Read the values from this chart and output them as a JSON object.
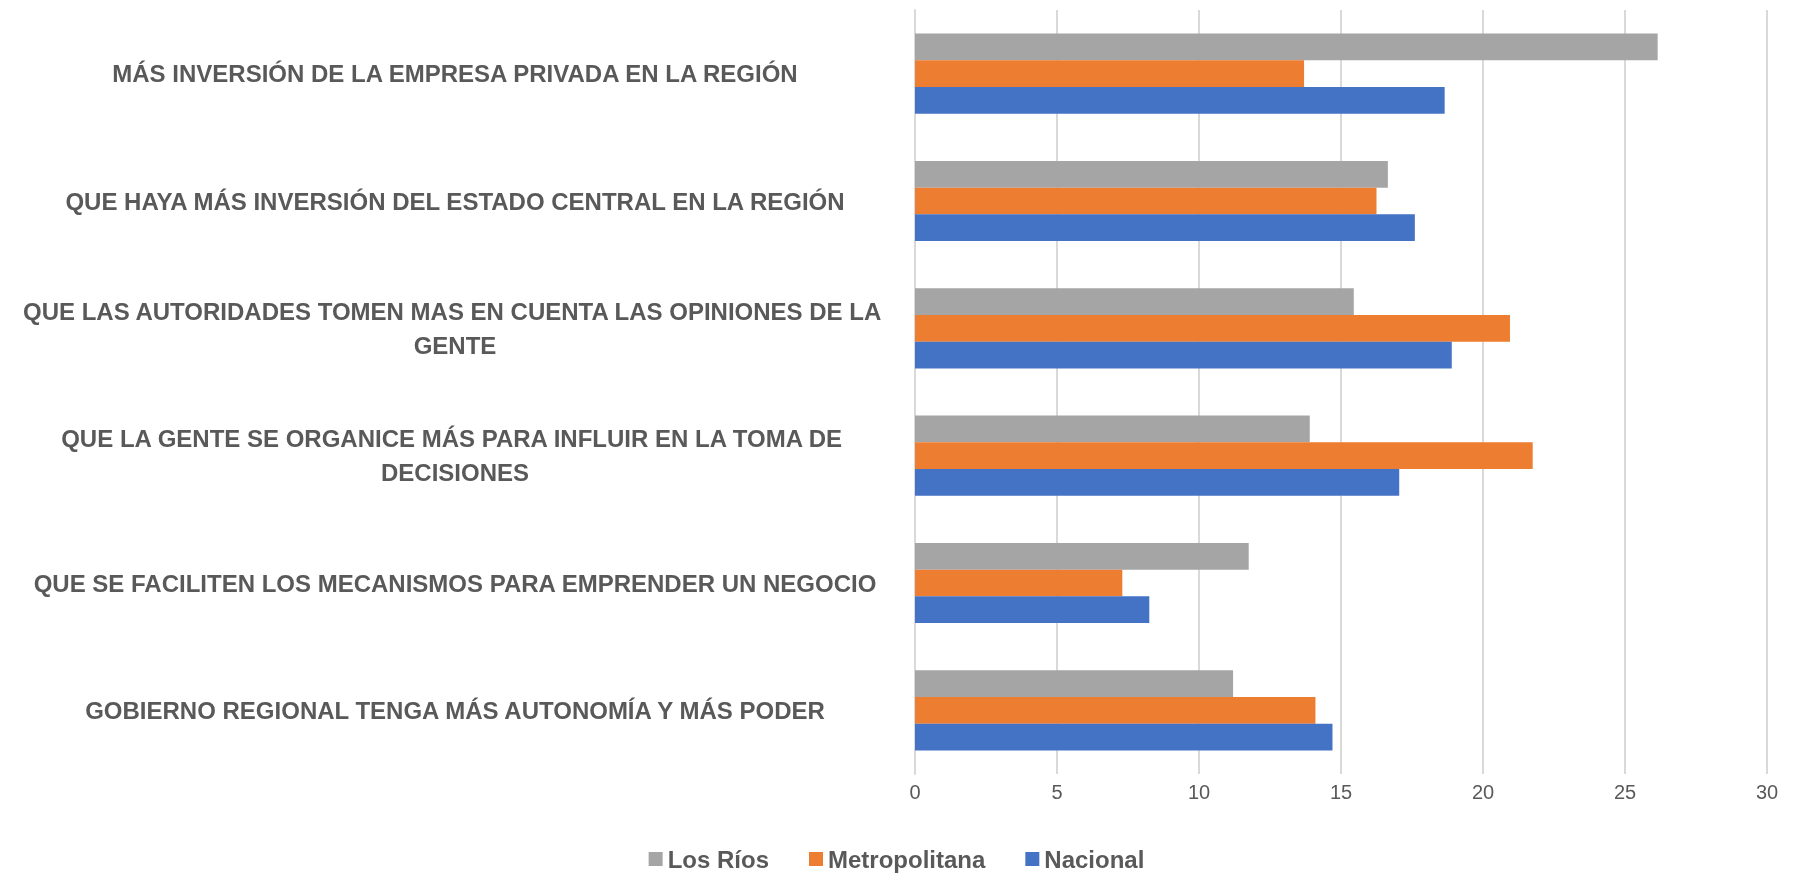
{
  "chart_data": {
    "type": "bar",
    "orientation": "horizontal",
    "categories": [
      "MÁS INVERSIÓN DE LA EMPRESA PRIVADA EN LA REGIÓN",
      "QUE HAYA MÁS INVERSIÓN DEL ESTADO CENTRAL EN LA REGIÓN",
      "QUE LAS AUTORIDADES TOMEN MAS EN CUENTA LAS OPINIONES DE LA GENTE",
      "QUE LA GENTE SE ORGANICE MÁS PARA INFLUIR EN LA TOMA DE DECISIONES",
      "QUE SE FACILITEN LOS MECANISMOS PARA EMPRENDER UN NEGOCIO",
      "GOBIERNO REGIONAL TENGA MÁS AUTONOMÍA Y MÁS PODER"
    ],
    "series": [
      {
        "name": "Los Ríos",
        "color": "#a5a5a5",
        "values": [
          26.15,
          16.65,
          15.45,
          13.9,
          11.75,
          11.2
        ]
      },
      {
        "name": "Metropolitana",
        "color": "#ed7d31",
        "values": [
          13.7,
          16.25,
          20.95,
          21.75,
          7.3,
          14.1
        ]
      },
      {
        "name": "Nacional",
        "color": "#4472c4",
        "values": [
          18.65,
          17.6,
          18.9,
          17.05,
          8.25,
          14.7
        ]
      }
    ],
    "xlim": [
      0,
      30
    ],
    "xticks": [
      0,
      5,
      10,
      15,
      20,
      25,
      30
    ],
    "grid": "x",
    "legend": "bottom"
  }
}
